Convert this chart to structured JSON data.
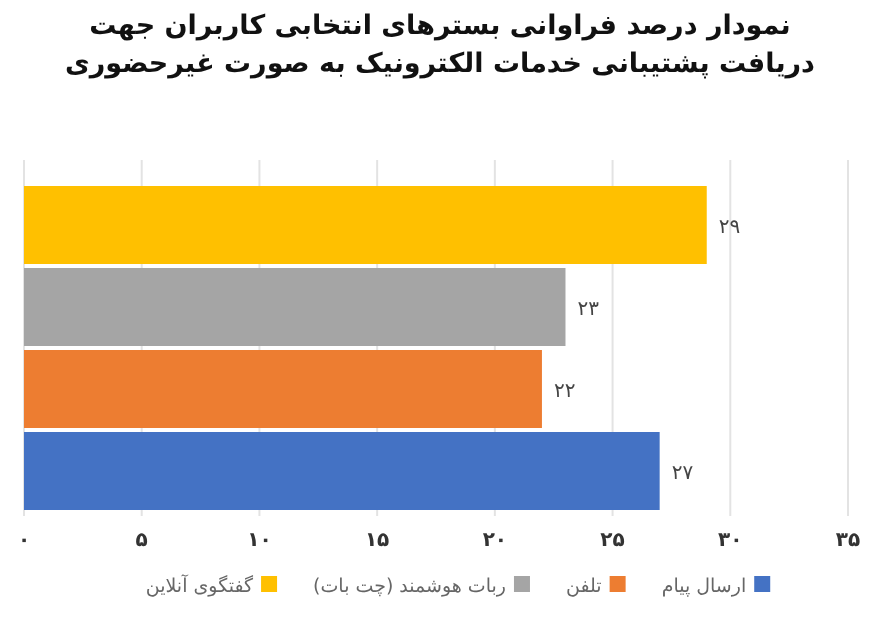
{
  "chart_data": {
    "type": "bar",
    "orientation": "horizontal",
    "title": "نمودار درصد فراوانی بسترهای انتخابی کاربران جهت دریافت پشتیبانی خدمات الکترونیک به صورت غیرحضوری",
    "categories": [
      null
    ],
    "series": [
      {
        "name": "ارسال پیام",
        "color": "#4472c4",
        "values": [
          27
        ],
        "value_labels": [
          "۲۷"
        ]
      },
      {
        "name": "تلفن",
        "color": "#ed7d31",
        "values": [
          22
        ],
        "value_labels": [
          "۲۲"
        ]
      },
      {
        "name": "ربات هوشمند (چت بات)",
        "color": "#a5a5a5",
        "values": [
          23
        ],
        "value_labels": [
          "۲۳"
        ]
      },
      {
        "name": "گفتگوی آنلاین",
        "color": "#ffc000",
        "values": [
          29
        ],
        "value_labels": [
          "۲۹"
        ]
      }
    ],
    "xlim": [
      0,
      35
    ],
    "xticks": [
      {
        "value": 0,
        "label": "۰"
      },
      {
        "value": 5,
        "label": "۵"
      },
      {
        "value": 10,
        "label": "۱۰"
      },
      {
        "value": 15,
        "label": "۱۵"
      },
      {
        "value": 20,
        "label": "۲۰"
      },
      {
        "value": 25,
        "label": "۲۵"
      },
      {
        "value": 30,
        "label": "۳۰"
      },
      {
        "value": 35,
        "label": "۳۵"
      }
    ],
    "grid": "x",
    "legend": "bottom"
  }
}
